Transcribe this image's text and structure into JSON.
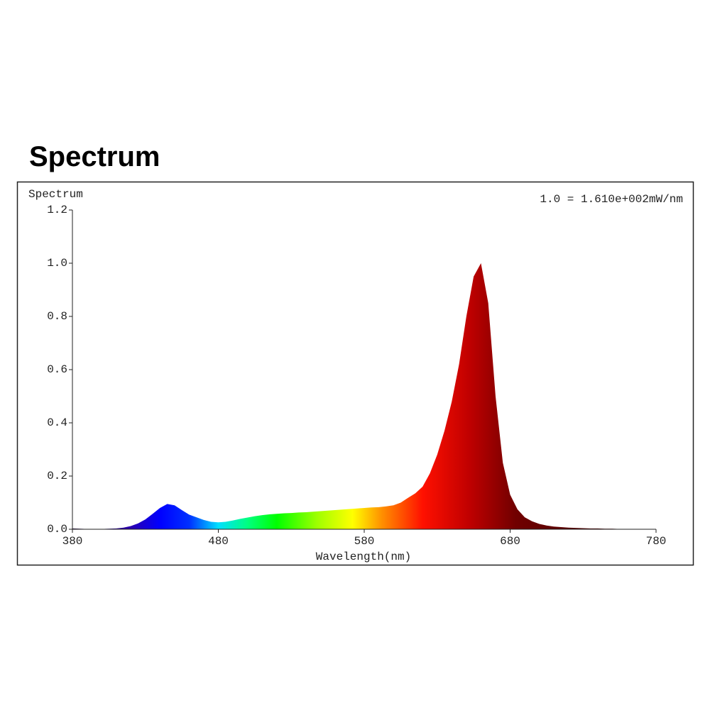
{
  "chart_data": {
    "type": "area",
    "title": "Spectrum",
    "y_label": "Spectrum",
    "annotation": "1.0 = 1.610e+002mW/nm",
    "x_label": "Wavelength(nm)",
    "x": [
      380,
      385,
      390,
      395,
      400,
      405,
      410,
      415,
      420,
      425,
      430,
      435,
      440,
      445,
      450,
      455,
      460,
      465,
      470,
      475,
      480,
      485,
      490,
      495,
      500,
      505,
      510,
      515,
      520,
      525,
      530,
      535,
      540,
      545,
      550,
      555,
      560,
      565,
      570,
      575,
      580,
      585,
      590,
      595,
      600,
      605,
      610,
      615,
      620,
      625,
      630,
      635,
      640,
      645,
      650,
      655,
      660,
      665,
      670,
      675,
      680,
      685,
      690,
      695,
      700,
      705,
      710,
      715,
      720,
      725,
      730,
      735,
      740,
      745,
      750,
      755,
      760,
      765,
      770,
      775,
      780
    ],
    "values": [
      0.003,
      0.002,
      0.001,
      0.001,
      0.001,
      0.002,
      0.003,
      0.006,
      0.012,
      0.022,
      0.037,
      0.058,
      0.08,
      0.095,
      0.09,
      0.072,
      0.055,
      0.045,
      0.035,
      0.028,
      0.026,
      0.028,
      0.033,
      0.039,
      0.044,
      0.049,
      0.053,
      0.056,
      0.058,
      0.06,
      0.061,
      0.063,
      0.064,
      0.066,
      0.068,
      0.07,
      0.072,
      0.074,
      0.076,
      0.078,
      0.08,
      0.082,
      0.083,
      0.086,
      0.09,
      0.1,
      0.118,
      0.135,
      0.16,
      0.21,
      0.28,
      0.37,
      0.48,
      0.62,
      0.8,
      0.95,
      1.0,
      0.85,
      0.5,
      0.25,
      0.13,
      0.075,
      0.045,
      0.03,
      0.02,
      0.014,
      0.01,
      0.008,
      0.006,
      0.005,
      0.004,
      0.003,
      0.003,
      0.002,
      0.002,
      0.001,
      0.001,
      0.001,
      0.001,
      0.001,
      0.001
    ],
    "xlim": [
      380,
      780
    ],
    "ylim": [
      0,
      1.2
    ],
    "xticks": [
      380,
      480,
      580,
      680,
      780
    ],
    "yticks": [
      {
        "value": 0,
        "label": "0.0"
      },
      0.2,
      0.4,
      0.6,
      0.8,
      {
        "value": 1,
        "label": "1.0"
      },
      1.2
    ],
    "grid": false
  }
}
